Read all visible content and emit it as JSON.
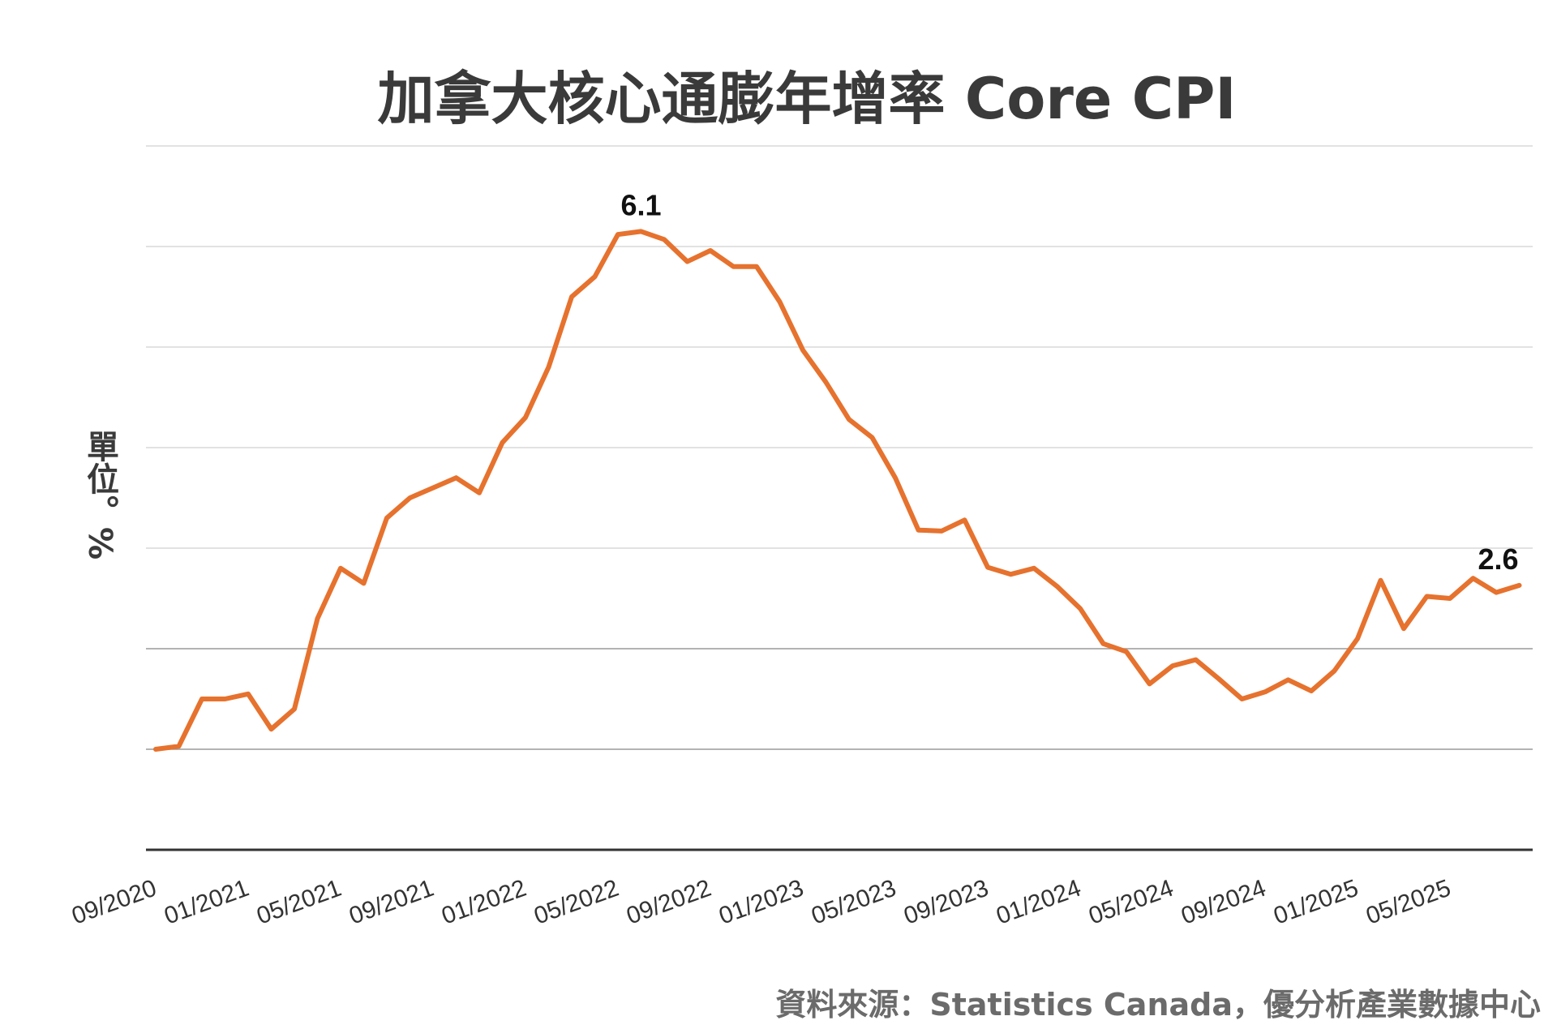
{
  "chart_data": {
    "type": "line",
    "title": "加拿大核心通膨年增率 Core CPI",
    "ylabel": "單位。%",
    "xlabel": "",
    "source": "資料來源：Statistics Canada，優分析產業數據中心",
    "x_tick_labels": [
      "09/2020",
      "01/2021",
      "05/2021",
      "09/2021",
      "01/2022",
      "05/2022",
      "09/2022",
      "01/2023",
      "05/2023",
      "09/2023",
      "01/2024",
      "05/2024",
      "09/2024",
      "01/2025",
      "05/2025"
    ],
    "x_tick_indices": [
      0,
      4,
      8,
      12,
      16,
      20,
      24,
      28,
      32,
      36,
      40,
      44,
      48,
      52,
      56
    ],
    "ylim": [
      0,
      7
    ],
    "grid": true,
    "line_color": "#e6722e",
    "series": [
      {
        "values": [
          1.0,
          1.03,
          1.5,
          1.5,
          1.55,
          1.2,
          1.4,
          2.3,
          2.8,
          2.65,
          3.3,
          3.5,
          3.6,
          3.7,
          3.55,
          4.05,
          4.3,
          4.8,
          5.5,
          5.7,
          6.12,
          6.15,
          6.07,
          5.85,
          5.96,
          5.8,
          5.8,
          5.45,
          4.97,
          4.65,
          4.28,
          4.1,
          3.7,
          3.18,
          3.17,
          3.28,
          2.81,
          2.74,
          2.8,
          2.62,
          2.4,
          2.05,
          1.97,
          1.65,
          1.83,
          1.89,
          1.7,
          1.5,
          1.57,
          1.69,
          1.58,
          1.78,
          2.1,
          2.68,
          2.2,
          2.52,
          2.5,
          2.7,
          2.56,
          2.63
        ]
      }
    ],
    "annotations": [
      {
        "index": 21,
        "label": "6.1"
      },
      {
        "index": 59,
        "label": "2.6"
      }
    ]
  }
}
